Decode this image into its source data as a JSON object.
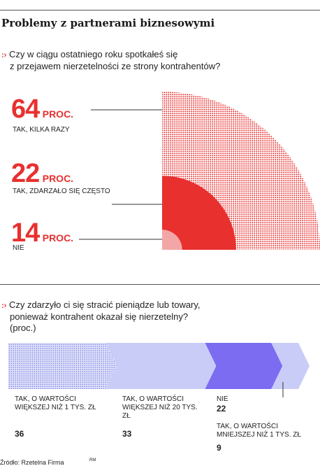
{
  "title": "Problemy z partnerami biznesowymi",
  "question1": {
    "line1": "Czy w ciągu ostatniego roku spotkałeś się",
    "line2": "z przejawem nierzetelności ze strony kontrahentów?"
  },
  "question2": {
    "line1": "Czy zdarzyło ci się stracić pieniądze lub towary,",
    "line2": "ponieważ kontrahent okazał się nierzetelny?",
    "line3": "(proc.)"
  },
  "unit": "PROC.",
  "source": "Źródło: Rzetelna Firma",
  "author": "RM",
  "colors": {
    "red": "#e8302f",
    "pink": "#f2a7a6",
    "blue": "#7b6cf2",
    "lightblue": "#c9ccf7"
  },
  "chart_data": [
    {
      "type": "pie",
      "categories": [
        "TAK, KILKA RAZY",
        "TAK, ZDARZAŁO SIĘ CZĘSTO",
        "NIE"
      ],
      "values": [
        64,
        22,
        14
      ]
    },
    {
      "type": "bar",
      "categories": [
        "TAK, O WARTOŚCI WIĘKSZEJ NIŻ 1 TYS. ZŁ",
        "TAK, O WARTOŚCI WIĘKSZEJ NIŻ 20 TYS. ZŁ",
        "NIE",
        "TAK, O WARTOŚCI MNIEJSZEJ NIŻ 1 TYS. ZŁ"
      ],
      "values": [
        36,
        33,
        22,
        9
      ]
    }
  ]
}
